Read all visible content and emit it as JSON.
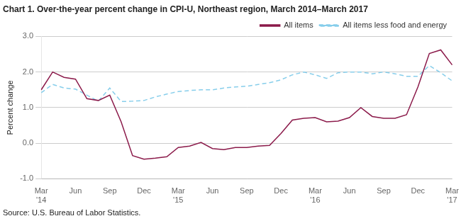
{
  "chart_data": {
    "type": "line",
    "title": "Chart 1. Over-the-year percent change in CPI-U, Northeast region, March 2014–March 2017",
    "y_label": "Percent change",
    "source": "Source: U.S. Bureau of Labor Statistics.",
    "categories": [
      "Mar\n'14",
      null,
      null,
      "Jun",
      null,
      null,
      "Sep",
      null,
      null,
      "Dec",
      null,
      null,
      "Mar\n'15",
      null,
      null,
      "Jun",
      null,
      null,
      "Sep",
      null,
      null,
      "Dec",
      null,
      null,
      "Mar\n'16",
      null,
      null,
      "Jun",
      null,
      null,
      "Sep",
      null,
      null,
      "Dec",
      null,
      null,
      "Mar\n'17"
    ],
    "series": [
      {
        "name": "All items",
        "color": "#8B1A4A",
        "line_style": "solid",
        "values": [
          1.5,
          2.0,
          1.85,
          1.8,
          1.25,
          1.2,
          1.35,
          0.6,
          -0.35,
          -0.45,
          -0.42,
          -0.38,
          -0.12,
          -0.08,
          0.02,
          -0.15,
          -0.18,
          -0.12,
          -0.12,
          -0.08,
          -0.06,
          0.27,
          0.65,
          0.7,
          0.72,
          0.6,
          0.62,
          0.72,
          1.0,
          0.75,
          0.7,
          0.7,
          0.8,
          1.58,
          2.52,
          2.62,
          2.2
        ]
      },
      {
        "name": "All items less food and energy",
        "color": "#87CEEB",
        "line_style": "dashed",
        "values": [
          1.42,
          1.65,
          1.55,
          1.52,
          1.35,
          1.18,
          1.55,
          1.17,
          1.18,
          1.2,
          1.3,
          1.38,
          1.45,
          1.48,
          1.5,
          1.5,
          1.55,
          1.58,
          1.6,
          1.65,
          1.7,
          1.78,
          1.92,
          2.0,
          1.92,
          1.82,
          1.98,
          2.0,
          2.0,
          1.95,
          2.0,
          1.95,
          1.88,
          1.88,
          2.18,
          1.98,
          1.75
        ]
      }
    ],
    "ylim": [
      -1.0,
      3.0
    ],
    "yticks": [
      {
        "value": -1.0,
        "label": "-1.0"
      },
      {
        "value": 0.0,
        "label": "0.0"
      },
      {
        "value": 1.0,
        "label": "1.0"
      },
      {
        "value": 2.0,
        "label": "2.0"
      },
      {
        "value": 3.0,
        "label": "3.0"
      }
    ],
    "grid": true,
    "legend": "upper right"
  }
}
